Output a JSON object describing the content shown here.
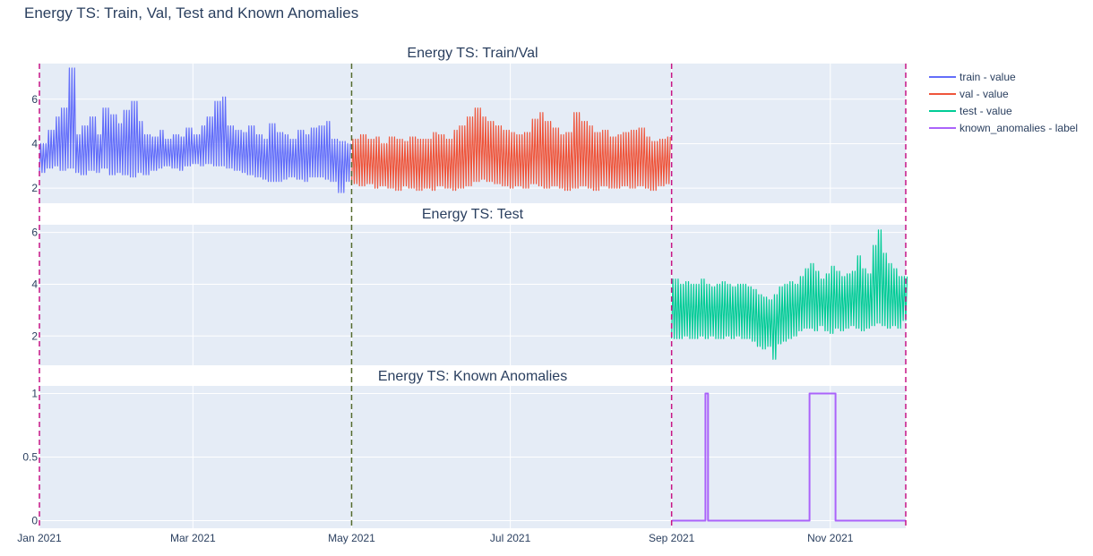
{
  "figure_title": "Energy TS: Train, Val, Test and Known Anomalies",
  "colors": {
    "train": "#636efa",
    "val": "#ef553b",
    "test": "#00cc96",
    "known_anomalies": "#ab63fa",
    "plot_background": "#e5ecf6",
    "split_line_val": "#556b2f",
    "split_line_test": "#c71585"
  },
  "chart_data": [
    {
      "type": "line",
      "title": "Energy TS: Train/Val",
      "x_range": [
        "2021-01-01",
        "2021-11-30"
      ],
      "ylim": [
        1.2,
        7.6
      ],
      "y_ticks": [
        2,
        4,
        6
      ],
      "series": [
        {
          "name": "train - value",
          "color_key": "train",
          "x_start": "2021-01-01",
          "x_end": "2021-04-30",
          "envelope_upper": [
            4.0,
            4.6,
            5.2,
            5.6,
            7.4,
            4.4,
            4.8,
            5.2,
            4.4,
            5.6,
            5.3,
            4.9,
            5.5,
            5.9,
            5.0,
            4.4,
            4.3,
            4.6,
            4.2,
            4.4,
            4.3,
            4.7,
            4.4,
            4.8,
            5.2,
            5.9,
            6.1,
            4.8,
            4.6,
            4.5,
            4.8,
            4.4,
            4.2,
            4.9,
            4.5,
            4.4,
            4.2,
            4.6,
            4.4,
            4.7,
            4.8,
            5.0,
            4.2,
            4.1,
            4.0
          ],
          "envelope_lower": [
            2.7,
            2.9,
            3.0,
            2.8,
            2.9,
            2.7,
            2.6,
            2.8,
            2.7,
            2.9,
            2.6,
            2.7,
            2.6,
            2.5,
            2.7,
            2.6,
            2.8,
            2.9,
            3.0,
            2.9,
            2.8,
            3.0,
            3.1,
            3.0,
            3.1,
            3.0,
            3.0,
            2.9,
            2.8,
            2.7,
            2.6,
            2.5,
            2.4,
            2.3,
            2.3,
            2.4,
            2.5,
            2.4,
            2.3,
            2.5,
            2.5,
            2.4,
            2.3,
            1.8,
            2.3
          ]
        },
        {
          "name": "val - value",
          "color_key": "val",
          "x_start": "2021-05-01",
          "x_end": "2021-08-31",
          "envelope_upper": [
            4.2,
            4.4,
            4.2,
            4.3,
            4.0,
            4.3,
            4.2,
            4.1,
            4.3,
            4.2,
            4.2,
            4.5,
            4.4,
            4.2,
            4.6,
            4.8,
            5.2,
            5.6,
            5.2,
            5.0,
            4.8,
            4.6,
            4.5,
            4.4,
            4.5,
            5.1,
            5.4,
            5.0,
            4.7,
            4.4,
            4.5,
            5.4,
            5.0,
            4.8,
            4.5,
            4.6,
            4.3,
            4.4,
            4.5,
            4.6,
            4.7,
            4.3,
            4.1,
            4.2,
            4.3
          ],
          "envelope_lower": [
            2.2,
            2.1,
            2.2,
            2.0,
            2.1,
            2.0,
            1.9,
            2.1,
            2.0,
            1.9,
            2.0,
            1.9,
            2.1,
            2.0,
            1.9,
            2.0,
            2.1,
            2.3,
            2.4,
            2.3,
            2.2,
            2.1,
            2.0,
            2.1,
            2.0,
            2.2,
            2.1,
            2.0,
            2.1,
            2.0,
            1.9,
            2.0,
            2.1,
            2.0,
            1.9,
            2.1,
            2.0,
            2.0,
            2.1,
            2.0,
            2.1,
            2.0,
            1.9,
            2.1,
            2.2
          ]
        }
      ]
    },
    {
      "type": "line",
      "title": "Energy TS: Test",
      "x_range": [
        "2021-01-01",
        "2021-11-30"
      ],
      "ylim": [
        0.8,
        6.3
      ],
      "y_ticks": [
        2,
        4,
        6
      ],
      "series": [
        {
          "name": "test - value",
          "color_key": "test",
          "x_start": "2021-09-01",
          "x_end": "2021-11-30",
          "envelope_upper": [
            4.2,
            4.0,
            4.1,
            4.0,
            4.0,
            4.2,
            4.0,
            3.9,
            4.0,
            4.1,
            4.0,
            3.9,
            4.0,
            4.0,
            3.9,
            3.8,
            3.6,
            3.5,
            3.4,
            3.6,
            3.9,
            4.0,
            4.1,
            4.0,
            4.3,
            4.6,
            4.8,
            4.5,
            4.2,
            4.4,
            4.7,
            4.5,
            4.3,
            4.4,
            4.5,
            5.1,
            4.6,
            4.4,
            5.5,
            6.1,
            5.2,
            4.8,
            4.6,
            4.3,
            4.3
          ],
          "envelope_lower": [
            1.9,
            1.9,
            2.0,
            1.9,
            1.9,
            2.0,
            1.9,
            2.0,
            1.9,
            1.9,
            2.0,
            1.9,
            2.0,
            1.9,
            1.9,
            1.8,
            1.6,
            1.5,
            1.6,
            1.1,
            1.7,
            1.8,
            1.9,
            2.0,
            2.2,
            2.3,
            2.3,
            2.2,
            2.4,
            2.2,
            2.1,
            2.3,
            2.2,
            2.3,
            2.4,
            2.3,
            2.2,
            2.3,
            2.4,
            2.5,
            2.4,
            2.3,
            2.4,
            2.3,
            2.6
          ]
        }
      ]
    },
    {
      "type": "line",
      "title": "Energy TS: Known Anomalies",
      "x_range": [
        "2021-01-01",
        "2021-11-30"
      ],
      "ylim": [
        -0.06,
        1.06
      ],
      "y_ticks": [
        0,
        0.5,
        1
      ],
      "series": [
        {
          "name": "known_anomalies - label",
          "color_key": "known_anomalies",
          "points": [
            [
              "2021-09-01",
              0
            ],
            [
              "2021-09-14",
              0
            ],
            [
              "2021-09-14",
              1
            ],
            [
              "2021-09-15",
              1
            ],
            [
              "2021-09-15",
              0
            ],
            [
              "2021-10-24",
              0
            ],
            [
              "2021-10-24",
              1
            ],
            [
              "2021-11-03",
              1
            ],
            [
              "2021-11-03",
              0
            ],
            [
              "2021-11-30",
              0
            ]
          ]
        }
      ]
    }
  ],
  "x_axis": {
    "tick_labels": [
      "Jan 2021",
      "Mar 2021",
      "May 2021",
      "Jul 2021",
      "Sep 2021",
      "Nov 2021"
    ],
    "tick_dates": [
      "2021-01-01",
      "2021-03-01",
      "2021-05-01",
      "2021-07-01",
      "2021-09-01",
      "2021-11-01"
    ]
  },
  "split_markers": [
    {
      "date": "2021-01-01",
      "color_key": "split_line_test"
    },
    {
      "date": "2021-05-01",
      "color_key": "split_line_val"
    },
    {
      "date": "2021-09-01",
      "color_key": "split_line_test"
    },
    {
      "date": "2021-11-30",
      "color_key": "split_line_test"
    }
  ],
  "legend": {
    "placement": "top-right",
    "items": [
      {
        "label": "train - value",
        "color_key": "train"
      },
      {
        "label": "val - value",
        "color_key": "val"
      },
      {
        "label": "test - value",
        "color_key": "test"
      },
      {
        "label": "known_anomalies - label",
        "color_key": "known_anomalies"
      }
    ]
  }
}
